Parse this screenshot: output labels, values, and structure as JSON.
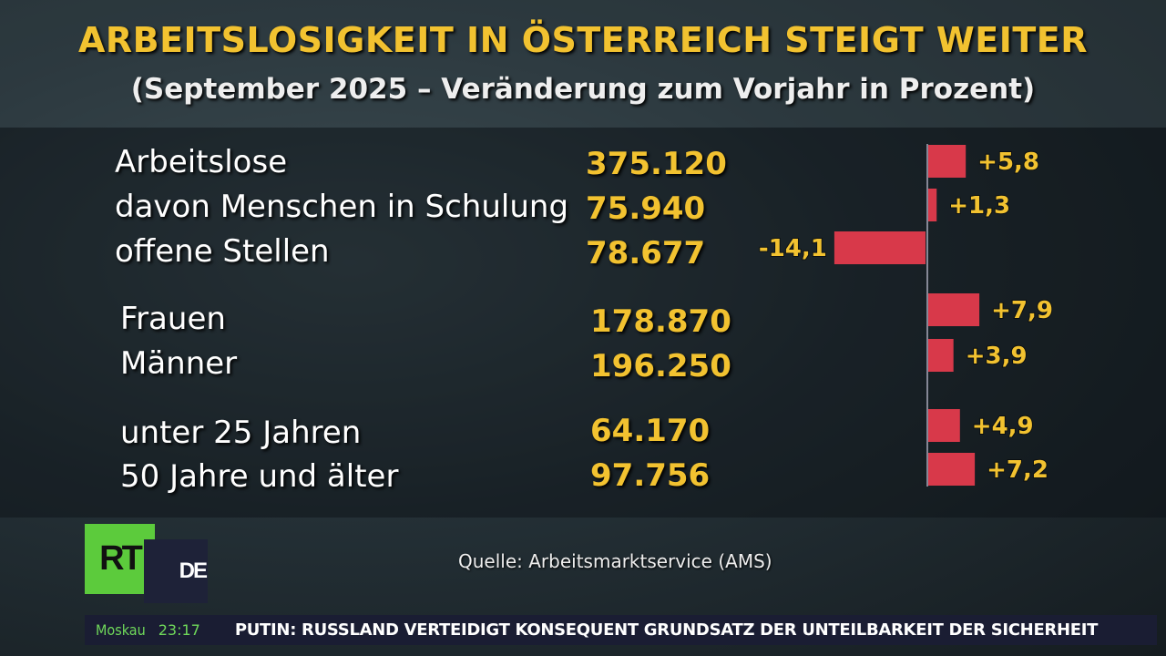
{
  "title": "ARBEITSLOSIGKEIT IN ÖSTERREICH STEIGT WEITER",
  "subtitle": "(September 2025 – Veränderung zum Vorjahr in Prozent)",
  "rows": [
    {
      "label": "Arbeitslose",
      "value": "375.120"
    },
    {
      "label": "davon Menschen in Schulung",
      "value": "75.940"
    },
    {
      "label": "offene Stellen",
      "value": "78.677"
    },
    {
      "label": "Frauen",
      "value": "178.870"
    },
    {
      "label": "Männer",
      "value": "196.250"
    },
    {
      "label": "unter 25 Jahren",
      "value": "64.170"
    },
    {
      "label": "50 Jahre und älter",
      "value": "97.756"
    }
  ],
  "chart_data": {
    "type": "bar",
    "orientation": "horizontal",
    "categories": [
      "Arbeitslose",
      "davon Menschen in Schulung",
      "offene Stellen",
      "Frauen",
      "Männer",
      "unter 25 Jahren",
      "50 Jahre und älter"
    ],
    "values": [
      5.8,
      1.3,
      -14.1,
      7.9,
      3.9,
      4.9,
      7.2
    ],
    "data_labels": [
      "+5,8",
      "+1,3",
      "-14,1",
      "+7,9",
      "+3,9",
      "+4,9",
      "+7,2"
    ],
    "bar_color": "#d8394a",
    "label_color": "#f2c230",
    "grid": false
  },
  "source": "Quelle: Arbeitsmarktservice (AMS)",
  "logo": {
    "rt": "RT",
    "de": "DE"
  },
  "ticker": {
    "city": "Moskau",
    "time": "23:17",
    "headline": "PUTIN: RUSSLAND VERTEIDIGT KONSEQUENT GRUNDSATZ DER UNTEILBARKEIT DER SICHERHEIT"
  }
}
